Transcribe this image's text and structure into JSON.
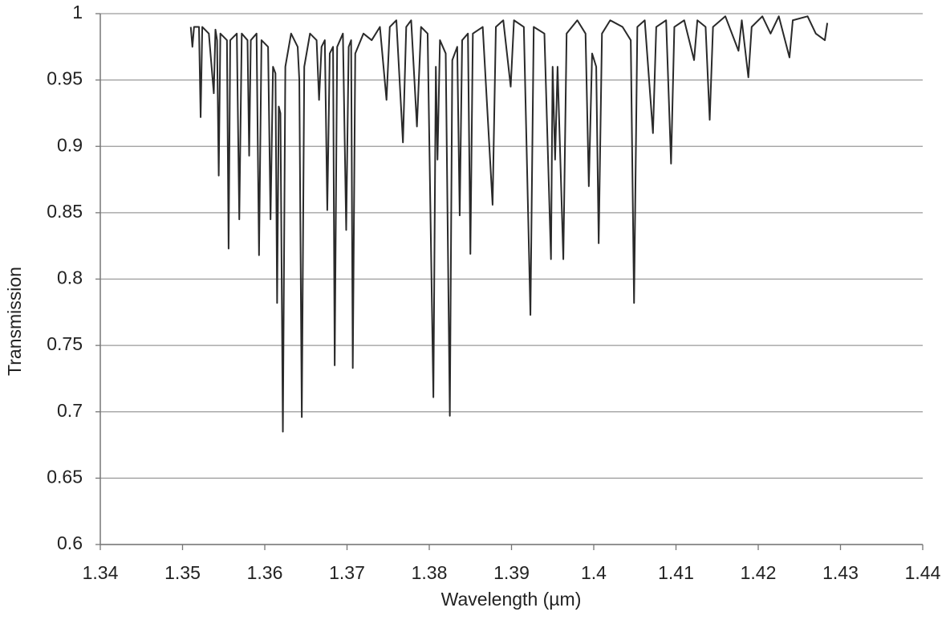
{
  "chart_data": {
    "type": "line",
    "x_label": "Wavelength (µm)",
    "y_label": "Transmission",
    "color": "#2a2a2a",
    "xlim": [
      1.34,
      1.44
    ],
    "xticks": [
      1.34,
      1.35,
      1.36,
      1.37,
      1.38,
      1.39,
      1.4,
      1.41,
      1.42,
      1.43,
      1.44
    ],
    "ylim": [
      0.6,
      1
    ],
    "yticks": [
      0.6,
      0.65,
      0.7,
      0.75,
      0.8,
      0.85,
      0.9,
      0.95,
      1
    ],
    "grid": true,
    "x": [
      1.351,
      1.3512,
      1.3514,
      1.352,
      1.3522,
      1.3524,
      1.3532,
      1.3538,
      1.354,
      1.3542,
      1.3544,
      1.3546,
      1.3554,
      1.3556,
      1.3558,
      1.3566,
      1.3569,
      1.3572,
      1.3579,
      1.3581,
      1.3583,
      1.359,
      1.3593,
      1.3596,
      1.3604,
      1.3607,
      1.361,
      1.3613,
      1.3615,
      1.3617,
      1.3619,
      1.3622,
      1.3625,
      1.3632,
      1.364,
      1.3642,
      1.3645,
      1.3648,
      1.3655,
      1.3663,
      1.3666,
      1.3669,
      1.3673,
      1.3676,
      1.3679,
      1.3683,
      1.3685,
      1.3688,
      1.3695,
      1.3699,
      1.3702,
      1.3705,
      1.3707,
      1.371,
      1.372,
      1.373,
      1.374,
      1.3748,
      1.3752,
      1.376,
      1.3768,
      1.3772,
      1.3778,
      1.3785,
      1.379,
      1.3798,
      1.3805,
      1.3808,
      1.381,
      1.3813,
      1.382,
      1.3825,
      1.3828,
      1.3834,
      1.3837,
      1.384,
      1.3847,
      1.385,
      1.3853,
      1.3865,
      1.3877,
      1.3881,
      1.389,
      1.3899,
      1.3903,
      1.3915,
      1.3923,
      1.3927,
      1.394,
      1.3948,
      1.395,
      1.3953,
      1.3956,
      1.3963,
      1.3967,
      1.398,
      1.399,
      1.3994,
      1.3998,
      1.4003,
      1.4006,
      1.401,
      1.402,
      1.4035,
      1.4045,
      1.4049,
      1.4053,
      1.4062,
      1.4072,
      1.4076,
      1.4088,
      1.4094,
      1.4098,
      1.411,
      1.4122,
      1.4126,
      1.4136,
      1.4141,
      1.4145,
      1.416,
      1.4176,
      1.418,
      1.4188,
      1.4192,
      1.4205,
      1.4215,
      1.4225,
      1.4238,
      1.4242,
      1.426,
      1.427,
      1.4281,
      1.4284
    ],
    "values": [
      0.99,
      0.975,
      0.99,
      0.99,
      0.922,
      0.99,
      0.985,
      0.94,
      0.988,
      0.98,
      0.878,
      0.985,
      0.98,
      0.823,
      0.98,
      0.985,
      0.845,
      0.985,
      0.98,
      0.893,
      0.98,
      0.985,
      0.818,
      0.98,
      0.975,
      0.845,
      0.96,
      0.955,
      0.782,
      0.93,
      0.925,
      0.685,
      0.96,
      0.985,
      0.975,
      0.95,
      0.696,
      0.96,
      0.985,
      0.98,
      0.935,
      0.975,
      0.98,
      0.852,
      0.97,
      0.975,
      0.735,
      0.975,
      0.985,
      0.837,
      0.975,
      0.98,
      0.733,
      0.97,
      0.985,
      0.98,
      0.99,
      0.935,
      0.99,
      0.995,
      0.903,
      0.99,
      0.995,
      0.915,
      0.99,
      0.985,
      0.711,
      0.96,
      0.89,
      0.98,
      0.97,
      0.697,
      0.965,
      0.975,
      0.848,
      0.98,
      0.985,
      0.819,
      0.985,
      0.99,
      0.856,
      0.99,
      0.995,
      0.945,
      0.995,
      0.99,
      0.773,
      0.99,
      0.985,
      0.815,
      0.96,
      0.89,
      0.96,
      0.815,
      0.985,
      0.995,
      0.985,
      0.87,
      0.97,
      0.96,
      0.827,
      0.985,
      0.995,
      0.99,
      0.98,
      0.782,
      0.99,
      0.995,
      0.91,
      0.99,
      0.995,
      0.887,
      0.99,
      0.995,
      0.965,
      0.995,
      0.99,
      0.92,
      0.99,
      0.998,
      0.972,
      0.995,
      0.952,
      0.99,
      0.998,
      0.985,
      0.998,
      0.967,
      0.995,
      0.998,
      0.985,
      0.98,
      0.993
    ]
  }
}
